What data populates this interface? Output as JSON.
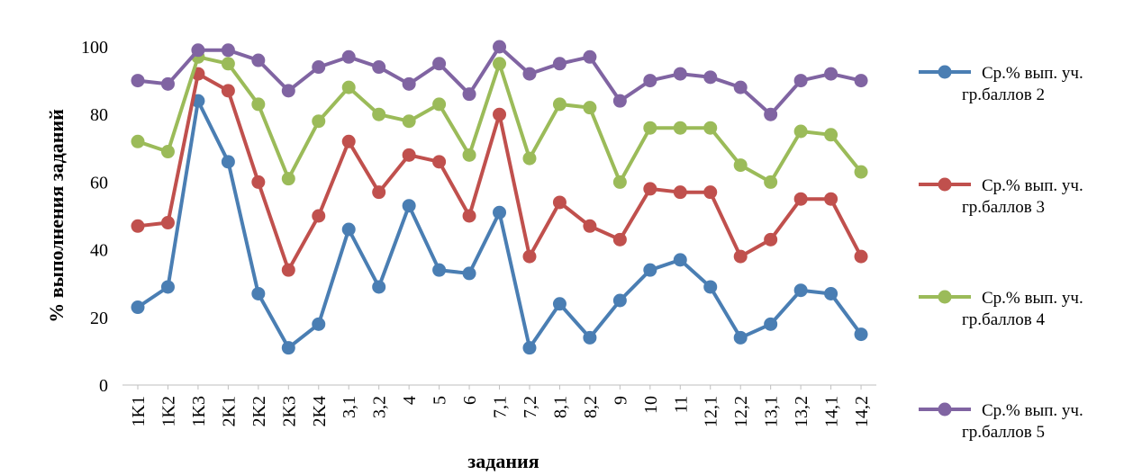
{
  "chart_data": {
    "type": "line",
    "title": "",
    "xlabel": "задания",
    "ylabel": "% выполнения заданий",
    "ylim": [
      0,
      100
    ],
    "yticks": [
      0,
      20,
      40,
      60,
      80,
      100
    ],
    "grid": false,
    "legend_position": "right",
    "categories": [
      "1K1",
      "1K2",
      "1K3",
      "2K1",
      "2K2",
      "2K3",
      "2K4",
      "3,1",
      "3,2",
      "4",
      "5",
      "6",
      "7,1",
      "7,2",
      "8,1",
      "8,2",
      "9",
      "10",
      "11",
      "12,1",
      "12,2",
      "13,1",
      "13,2",
      "14,1",
      "14,2"
    ],
    "series": [
      {
        "name": "Ср.% вып. уч. гр.баллов 2",
        "color": "#4a7eb3",
        "values": [
          23,
          29,
          84,
          66,
          27,
          11,
          18,
          46,
          29,
          53,
          34,
          33,
          51,
          11,
          24,
          14,
          25,
          34,
          37,
          29,
          14,
          18,
          28,
          27,
          15
        ]
      },
      {
        "name": "Ср.% вып. уч. гр.баллов 3",
        "color": "#c0504d",
        "values": [
          47,
          48,
          92,
          87,
          60,
          34,
          50,
          72,
          57,
          68,
          66,
          50,
          80,
          38,
          54,
          47,
          43,
          58,
          57,
          57,
          38,
          43,
          55,
          55,
          38
        ]
      },
      {
        "name": "Ср.% вып. уч. гр.баллов 4",
        "color": "#9bbb59",
        "values": [
          72,
          69,
          97,
          95,
          83,
          61,
          78,
          88,
          80,
          78,
          83,
          68,
          95,
          67,
          83,
          82,
          60,
          76,
          76,
          76,
          65,
          60,
          75,
          74,
          63
        ]
      },
      {
        "name": "Ср.% вып. уч. гр.баллов 5",
        "color": "#8064a2",
        "values": [
          90,
          89,
          99,
          99,
          96,
          87,
          94,
          97,
          94,
          89,
          95,
          86,
          100,
          92,
          95,
          97,
          84,
          90,
          92,
          91,
          88,
          80,
          90,
          92,
          90
        ]
      }
    ]
  }
}
